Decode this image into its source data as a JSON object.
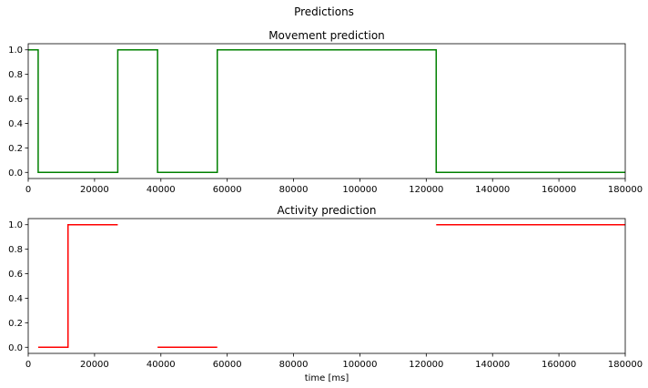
{
  "figure_title": "Predictions",
  "chart_data": [
    {
      "type": "line",
      "title": "Movement prediction",
      "xlabel": "",
      "ylabel": "",
      "xlim": [
        0,
        180000
      ],
      "ylim": [
        -0.05,
        1.05
      ],
      "xticks": [
        0,
        20000,
        40000,
        60000,
        80000,
        100000,
        120000,
        140000,
        160000,
        180000
      ],
      "yticks": [
        0.0,
        0.2,
        0.4,
        0.6,
        0.8,
        1.0
      ],
      "grid": false,
      "color": "#008000",
      "series": [
        {
          "segments": [
            {
              "x": [
                0,
                3000,
                3000,
                27000,
                27000,
                39000,
                39000,
                57000,
                57000,
                123000,
                123000,
                180000
              ],
              "y": [
                1,
                1,
                0,
                0,
                1,
                1,
                0,
                0,
                1,
                1,
                0,
                0
              ]
            }
          ]
        }
      ]
    },
    {
      "type": "line",
      "title": "Activity prediction",
      "xlabel": "time [ms]",
      "ylabel": "",
      "xlim": [
        0,
        180000
      ],
      "ylim": [
        -0.05,
        1.05
      ],
      "xticks": [
        0,
        20000,
        40000,
        60000,
        80000,
        100000,
        120000,
        140000,
        160000,
        180000
      ],
      "yticks": [
        0.0,
        0.2,
        0.4,
        0.6,
        0.8,
        1.0
      ],
      "grid": false,
      "color": "#ff0000",
      "series": [
        {
          "segments": [
            {
              "x": [
                3000,
                12000,
                12000,
                27000
              ],
              "y": [
                0,
                0,
                1,
                1
              ]
            },
            {
              "x": [
                39000,
                57000
              ],
              "y": [
                0,
                0
              ]
            },
            {
              "x": [
                123000,
                180000
              ],
              "y": [
                1,
                1
              ]
            }
          ]
        }
      ]
    }
  ]
}
